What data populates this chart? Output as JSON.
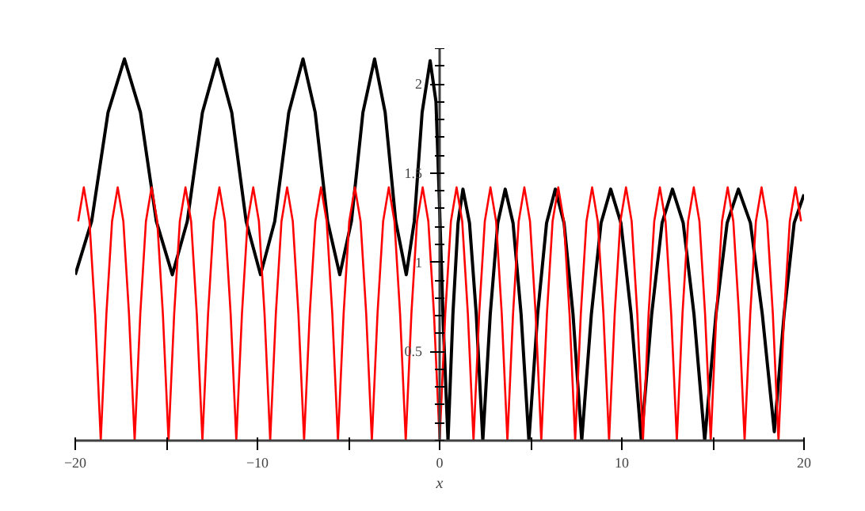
{
  "chart_data": {
    "type": "line",
    "xlabel": "x",
    "xlim": [
      -20,
      20
    ],
    "ylim": [
      0,
      2.2
    ],
    "xticks": [
      -20,
      {
        "value": -15,
        "label": null
      },
      -10,
      {
        "value": -5,
        "label": null
      },
      0,
      {
        "value": 5,
        "label": null
      },
      10,
      {
        "value": 15,
        "label": null
      },
      20
    ],
    "yticks": [
      0.5,
      1,
      1.5,
      2
    ],
    "grid": false,
    "marker": "none",
    "line_style": "solid",
    "series": [
      {
        "color": "#000000",
        "x": [
          -20,
          -19.1,
          -18.2,
          -17.3,
          -16.42,
          -15.55,
          -14.67,
          -13.85,
          -13.02,
          -12.2,
          -11.41,
          -10.62,
          -9.83,
          -9.05,
          -8.28,
          -7.5,
          -6.83,
          -6.15,
          -5.48,
          -4.84,
          -4.21,
          -3.57,
          -2.99,
          -2.41,
          -1.83,
          -1.39,
          -0.96,
          -0.52,
          -0.2,
          0,
          0.2,
          0.46,
          0.73,
          1.01,
          1.28,
          1.64,
          2.01,
          2.37,
          2.78,
          3.19,
          3.6,
          4.03,
          4.47,
          4.9,
          5.38,
          5.87,
          6.35,
          6.83,
          7.32,
          7.8,
          8.33,
          8.86,
          9.39,
          9.95,
          10.51,
          11.07,
          11.64,
          12.21,
          12.78,
          13.37,
          13.96,
          14.55,
          15.17,
          15.78,
          16.4,
          17.06,
          17.71,
          18.37,
          18.91,
          19.46,
          20
        ],
        "values": [
          0.93,
          1.23,
          1.84,
          2.14,
          1.84,
          1.23,
          0.93,
          1.23,
          1.84,
          2.14,
          1.84,
          1.23,
          0.93,
          1.23,
          1.84,
          2.14,
          1.84,
          1.23,
          0.93,
          1.23,
          1.84,
          2.14,
          1.84,
          1.23,
          0.93,
          1.23,
          1.84,
          2.13,
          1.9,
          1.3,
          0.65,
          0,
          0.71,
          1.22,
          1.41,
          1.22,
          0.71,
          0,
          0.71,
          1.22,
          1.41,
          1.22,
          0.71,
          0,
          0.71,
          1.22,
          1.41,
          1.22,
          0.71,
          0,
          0.71,
          1.22,
          1.41,
          1.22,
          0.71,
          0,
          0.71,
          1.22,
          1.41,
          1.22,
          0.71,
          0,
          0.71,
          1.22,
          1.41,
          1.22,
          0.71,
          0.05,
          0.71,
          1.22,
          1.38
        ]
      },
      {
        "color": "#ff0000",
        "x": [
          -19.84,
          -19.53,
          -19.22,
          -18.91,
          -18.6,
          -18.29,
          -17.98,
          -17.67,
          -17.36,
          -17.05,
          -16.74,
          -16.43,
          -16.12,
          -15.81,
          -15.5,
          -15.19,
          -14.88,
          -14.57,
          -14.26,
          -13.95,
          -13.64,
          -13.33,
          -13.02,
          -12.71,
          -12.4,
          -12.09,
          -11.78,
          -11.47,
          -11.16,
          -10.85,
          -10.54,
          -10.23,
          -9.92,
          -9.61,
          -9.3,
          -8.99,
          -8.68,
          -8.37,
          -8.06,
          -7.75,
          -7.44,
          -7.13,
          -6.82,
          -6.51,
          -6.2,
          -5.89,
          -5.58,
          -5.27,
          -4.96,
          -4.65,
          -4.34,
          -4.03,
          -3.72,
          -3.41,
          -3.1,
          -2.79,
          -2.48,
          -2.17,
          -1.86,
          -1.55,
          -1.24,
          -0.93,
          -0.62,
          -0.31,
          0,
          0.31,
          0.62,
          0.93,
          1.24,
          1.55,
          1.86,
          2.17,
          2.48,
          2.79,
          3.1,
          3.41,
          3.72,
          4.03,
          4.34,
          4.65,
          4.96,
          5.27,
          5.58,
          5.89,
          6.2,
          6.51,
          6.82,
          7.13,
          7.44,
          7.75,
          8.06,
          8.37,
          8.68,
          8.99,
          9.3,
          9.61,
          9.92,
          10.23,
          10.54,
          10.85,
          11.16,
          11.47,
          11.78,
          12.09,
          12.4,
          12.71,
          13.02,
          13.33,
          13.64,
          13.95,
          14.26,
          14.57,
          14.88,
          15.19,
          15.5,
          15.81,
          16.12,
          16.43,
          16.74,
          17.05,
          17.36,
          17.67,
          17.98,
          18.29,
          18.6,
          18.91,
          19.22,
          19.53,
          19.84
        ],
        "values": [
          1.23,
          1.42,
          1.23,
          0.71,
          0,
          0.71,
          1.23,
          1.42,
          1.23,
          0.71,
          0,
          0.71,
          1.23,
          1.42,
          1.23,
          0.71,
          0,
          0.71,
          1.23,
          1.42,
          1.23,
          0.71,
          0,
          0.71,
          1.23,
          1.42,
          1.23,
          0.71,
          0,
          0.71,
          1.23,
          1.42,
          1.23,
          0.71,
          0,
          0.71,
          1.23,
          1.42,
          1.23,
          0.71,
          0,
          0.71,
          1.23,
          1.42,
          1.23,
          0.71,
          0,
          0.71,
          1.23,
          1.42,
          1.23,
          0.71,
          0,
          0.71,
          1.23,
          1.42,
          1.23,
          0.71,
          0,
          0.71,
          1.23,
          1.42,
          1.23,
          0.71,
          0,
          0.71,
          1.23,
          1.42,
          1.23,
          0.71,
          0,
          0.71,
          1.23,
          1.42,
          1.23,
          0.71,
          0,
          0.71,
          1.23,
          1.42,
          1.23,
          0.71,
          0,
          0.71,
          1.23,
          1.42,
          1.23,
          0.71,
          0,
          0.71,
          1.23,
          1.42,
          1.23,
          0.71,
          0,
          0.71,
          1.23,
          1.42,
          1.23,
          0.71,
          0,
          0.71,
          1.23,
          1.42,
          1.23,
          0.71,
          0,
          0.71,
          1.23,
          1.42,
          1.23,
          0.71,
          0,
          0.71,
          1.23,
          1.42,
          1.23,
          0.71,
          0,
          0.71,
          1.23,
          1.42,
          1.23,
          0.71,
          0,
          0.71,
          1.23,
          1.42,
          1.23
        ]
      }
    ]
  }
}
